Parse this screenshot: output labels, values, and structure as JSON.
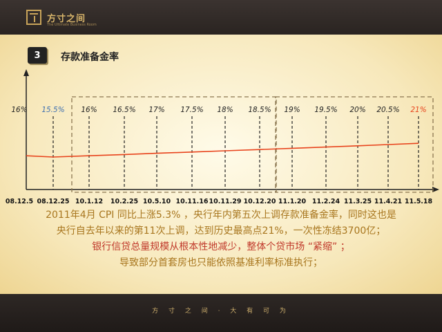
{
  "header": {
    "logo_text": "方寸之间",
    "logo_sub": "The Ultimate Business Room"
  },
  "section": {
    "number": "3",
    "title": "存款准备金率"
  },
  "chart_data": {
    "type": "line",
    "title": "存款准备金率",
    "categories": [
      "08.12.5",
      "08.12.25",
      "10.1.12",
      "10.2.25",
      "10.5.10",
      "10.11.16",
      "10.11.29",
      "10.12.20",
      "11.1.20",
      "11.2.24",
      "11.3.25",
      "11.4.21",
      "11.5.18"
    ],
    "values": [
      16,
      15.5,
      16,
      16.5,
      17,
      17.5,
      18,
      18.5,
      19,
      19.5,
      20,
      20.5,
      21
    ],
    "value_labels": [
      "16%",
      "15.5%",
      "16%",
      "16.5%",
      "17%",
      "17.5%",
      "18%",
      "18.5%",
      "19%",
      "19.5%",
      "20%",
      "20.5%",
      "21%"
    ],
    "line_color": "#e8431c",
    "label_colors": {
      "default": "#222222",
      "decrease": "#3d6fb0",
      "latest": "#e8431c"
    },
    "groups": [
      {
        "from": "10.1.12",
        "to": "10.12.20",
        "style": "dashed-box"
      },
      {
        "from": "11.1.20",
        "to": "11.5.18",
        "style": "dashed-box"
      }
    ],
    "xlabel": "",
    "ylabel": ""
  },
  "text": {
    "line1": "2011年4月 CPI 同比上涨5.3% ，央行年内第五次上调存款准备金率，同时这也是",
    "line2": "央行自去年以来的第11次上调，达到历史最高点21%，一次性冻结3700亿；",
    "line3": "银行信贷总量规模从根本性地减少，整体个贷市场 “紧缩” ；",
    "line4": "导致部分首套房也只能依照基准利率标准执行；"
  },
  "footer": {
    "text": "方 寸 之 间 · 大 有 可 为"
  }
}
